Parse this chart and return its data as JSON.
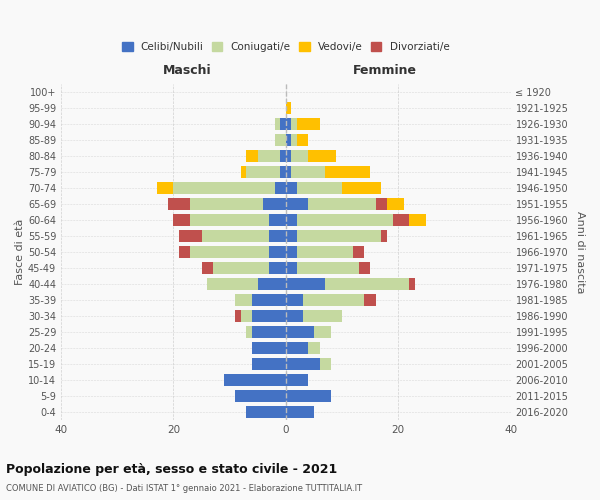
{
  "age_groups": [
    "0-4",
    "5-9",
    "10-14",
    "15-19",
    "20-24",
    "25-29",
    "30-34",
    "35-39",
    "40-44",
    "45-49",
    "50-54",
    "55-59",
    "60-64",
    "65-69",
    "70-74",
    "75-79",
    "80-84",
    "85-89",
    "90-94",
    "95-99",
    "100+"
  ],
  "birth_years": [
    "2016-2020",
    "2011-2015",
    "2006-2010",
    "2001-2005",
    "1996-2000",
    "1991-1995",
    "1986-1990",
    "1981-1985",
    "1976-1980",
    "1971-1975",
    "1966-1970",
    "1961-1965",
    "1956-1960",
    "1951-1955",
    "1946-1950",
    "1941-1945",
    "1936-1940",
    "1931-1935",
    "1926-1930",
    "1921-1925",
    "≤ 1920"
  ],
  "males": {
    "celibi": [
      7,
      9,
      11,
      6,
      6,
      6,
      6,
      6,
      5,
      3,
      3,
      3,
      3,
      4,
      2,
      1,
      1,
      0,
      1,
      0,
      0
    ],
    "coniugati": [
      0,
      0,
      0,
      0,
      0,
      1,
      2,
      3,
      9,
      10,
      14,
      12,
      14,
      13,
      18,
      6,
      4,
      2,
      1,
      0,
      0
    ],
    "vedovi": [
      0,
      0,
      0,
      0,
      0,
      0,
      0,
      0,
      0,
      0,
      0,
      0,
      0,
      0,
      3,
      1,
      2,
      0,
      0,
      0,
      0
    ],
    "divorziati": [
      0,
      0,
      0,
      0,
      0,
      0,
      1,
      0,
      0,
      2,
      2,
      4,
      3,
      4,
      0,
      0,
      0,
      0,
      0,
      0,
      0
    ]
  },
  "females": {
    "nubili": [
      5,
      8,
      4,
      6,
      4,
      5,
      3,
      3,
      7,
      2,
      2,
      2,
      2,
      4,
      2,
      1,
      1,
      1,
      1,
      0,
      0
    ],
    "coniugate": [
      0,
      0,
      0,
      2,
      2,
      3,
      7,
      11,
      15,
      11,
      10,
      15,
      17,
      12,
      8,
      6,
      3,
      1,
      1,
      0,
      0
    ],
    "vedove": [
      0,
      0,
      0,
      0,
      0,
      0,
      0,
      0,
      0,
      0,
      0,
      0,
      3,
      3,
      7,
      8,
      5,
      2,
      4,
      1,
      0
    ],
    "divorziate": [
      0,
      0,
      0,
      0,
      0,
      0,
      0,
      2,
      1,
      2,
      2,
      1,
      3,
      2,
      0,
      0,
      0,
      0,
      0,
      0,
      0
    ]
  },
  "color_celibi": "#4472c4",
  "color_coniugati": "#c5d9a0",
  "color_vedovi": "#ffc000",
  "color_divorziati": "#c0504d",
  "title": "Popolazione per età, sesso e stato civile - 2021",
  "subtitle": "COMUNE DI AVIATICO (BG) - Dati ISTAT 1° gennaio 2021 - Elaborazione TUTTITALIA.IT",
  "xlabel_left": "Maschi",
  "xlabel_right": "Femmine",
  "ylabel_left": "Fasce di età",
  "ylabel_right": "Anni di nascita",
  "xlim": 40,
  "bg_color": "#f9f9f9",
  "grid_color": "#cccccc"
}
